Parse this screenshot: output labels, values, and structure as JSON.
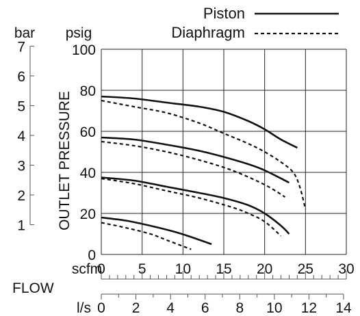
{
  "chart_data": {
    "type": "line",
    "title": "",
    "legend": {
      "placement": "top-right",
      "entries": [
        {
          "name": "Piston",
          "style": "solid"
        },
        {
          "name": "Diaphragm",
          "style": "dashed"
        }
      ]
    },
    "y_axis": {
      "label": "OUTLET PRESSURE",
      "unit_primary": "psig",
      "unit_secondary": "bar",
      "psig_ticks": [
        "0",
        "20",
        "40",
        "60",
        "80",
        "100"
      ],
      "bar_ticks": [
        "1",
        "2",
        "3",
        "4",
        "5",
        "6",
        "7"
      ],
      "ylim": [
        0,
        100
      ]
    },
    "x_axis": {
      "label": "FLOW",
      "unit_primary": "scfm",
      "unit_secondary": "l/s",
      "scfm_ticks": [
        "0",
        "5",
        "10",
        "15",
        "20",
        "25",
        "30"
      ],
      "ls_ticks": [
        "0",
        "2",
        "4",
        "6",
        "8",
        "10",
        "12",
        "14"
      ],
      "xlim": [
        0,
        30
      ]
    },
    "grid": true,
    "series": [
      {
        "name": "Piston",
        "style": "solid",
        "points": [
          [
            0,
            18
          ],
          [
            3,
            16.5
          ],
          [
            6,
            14
          ],
          [
            9,
            11
          ],
          [
            11,
            8.5
          ],
          [
            13.5,
            5
          ]
        ]
      },
      {
        "name": "Piston",
        "style": "solid",
        "points": [
          [
            0,
            37.5
          ],
          [
            4,
            36
          ],
          [
            8,
            33
          ],
          [
            12,
            30
          ],
          [
            15,
            27.5
          ],
          [
            18,
            24
          ],
          [
            20,
            20
          ],
          [
            22,
            14
          ],
          [
            23,
            10
          ]
        ]
      },
      {
        "name": "Piston",
        "style": "solid",
        "points": [
          [
            0,
            57
          ],
          [
            4,
            56
          ],
          [
            8,
            53.5
          ],
          [
            12,
            50.5
          ],
          [
            15,
            47.5
          ],
          [
            18,
            44
          ],
          [
            20,
            41
          ],
          [
            23,
            35
          ]
        ]
      },
      {
        "name": "Piston",
        "style": "solid",
        "points": [
          [
            0,
            77
          ],
          [
            4,
            76
          ],
          [
            8,
            74
          ],
          [
            12,
            72
          ],
          [
            15,
            69.5
          ],
          [
            18,
            65
          ],
          [
            20,
            61
          ],
          [
            22,
            56
          ],
          [
            24,
            52
          ]
        ]
      },
      {
        "name": "Diaphragm",
        "style": "dashed",
        "points": [
          [
            0,
            15.5
          ],
          [
            3,
            13
          ],
          [
            6,
            10
          ],
          [
            8,
            7
          ],
          [
            10,
            4
          ],
          [
            11,
            2.5
          ]
        ]
      },
      {
        "name": "Diaphragm",
        "style": "dashed",
        "points": [
          [
            0,
            37
          ],
          [
            4,
            34.5
          ],
          [
            8,
            31
          ],
          [
            12,
            27.5
          ],
          [
            16,
            23
          ],
          [
            18,
            20
          ],
          [
            20,
            16
          ],
          [
            22,
            9
          ]
        ]
      },
      {
        "name": "Diaphragm",
        "style": "dashed",
        "points": [
          [
            0,
            55
          ],
          [
            4,
            53
          ],
          [
            8,
            50
          ],
          [
            12,
            46
          ],
          [
            16,
            41
          ],
          [
            20,
            34
          ],
          [
            22.5,
            28
          ]
        ]
      },
      {
        "name": "Diaphragm",
        "style": "dashed",
        "points": [
          [
            0,
            75
          ],
          [
            4,
            72
          ],
          [
            8,
            69
          ],
          [
            12,
            64
          ],
          [
            15,
            59
          ],
          [
            18,
            54
          ],
          [
            20,
            50
          ],
          [
            22,
            45
          ],
          [
            23.5,
            40
          ],
          [
            24.3,
            33
          ],
          [
            25,
            22
          ]
        ]
      }
    ]
  }
}
